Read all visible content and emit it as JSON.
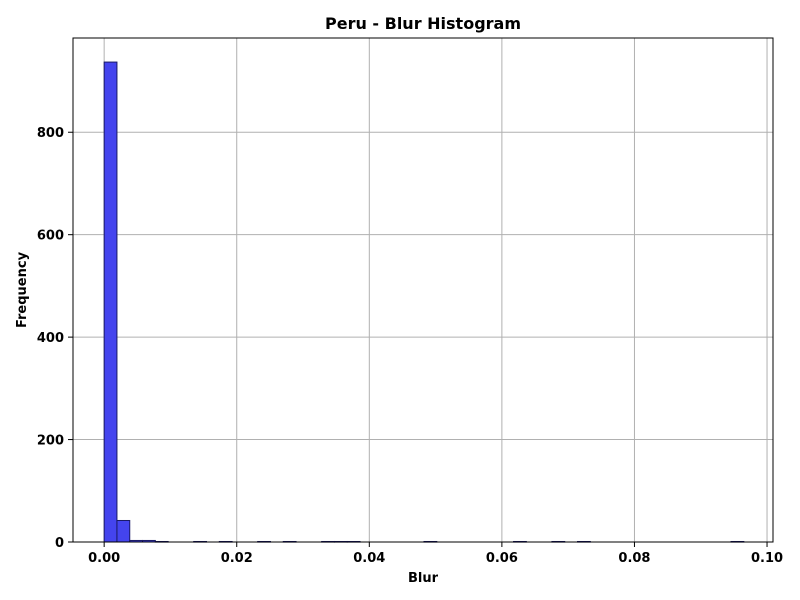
{
  "chart_data": {
    "type": "bar",
    "subtype": "histogram",
    "title": "Peru - Blur Histogram",
    "xlabel": "Blur",
    "ylabel": "Frequency",
    "xlim": [
      -0.0047,
      0.1009
    ],
    "ylim": [
      0,
      984
    ],
    "xticks": [
      0.0,
      0.02,
      0.04,
      0.06,
      0.08,
      0.1
    ],
    "xtick_labels": [
      "0.00",
      "0.02",
      "0.04",
      "0.06",
      "0.08",
      "0.10"
    ],
    "yticks": [
      0,
      200,
      400,
      600,
      800
    ],
    "ytick_labels": [
      "0",
      "200",
      "400",
      "600",
      "800"
    ],
    "grid": true,
    "bar_color": "#4444ee",
    "bar_edge_color": "#1a1a66",
    "bin_start": 0.0,
    "bin_width": 0.00193,
    "counts": [
      937,
      42,
      3,
      3,
      1,
      0,
      0,
      1,
      0,
      1,
      0,
      0,
      1,
      0,
      1,
      0,
      0,
      1,
      1,
      1,
      0,
      0,
      0,
      0,
      0,
      1,
      0,
      0,
      0,
      0,
      0,
      0,
      1,
      0,
      0,
      1,
      0,
      1,
      0,
      0,
      0,
      0,
      0,
      0,
      0,
      0,
      0,
      0,
      0,
      1
    ]
  }
}
